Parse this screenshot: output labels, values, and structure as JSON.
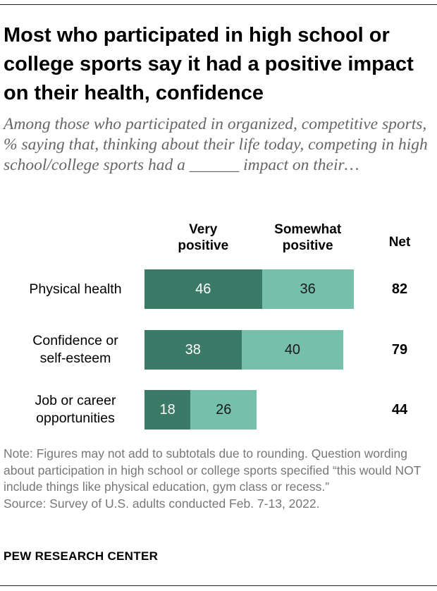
{
  "title": "Most who participated in high school or college sports say it had a positive impact on their health, confidence",
  "subtitle": "Among those who participated in organized, competitive sports, % saying that, thinking about their life today, competing in high school/college sports had a ______ impact on their…",
  "note": "Note: Figures may not add to subtotals due to rounding. Question wording about participation in high school or college sports specified “this would NOT include things like physical education, gym class or recess.”",
  "source": "Source: Survey of U.S. adults conducted Feb. 7-13, 2022.",
  "footer": "PEW RESEARCH CENTER",
  "colors": {
    "very_positive": "#3b7a66",
    "somewhat_positive": "#76bfab"
  },
  "chart_data": {
    "type": "bar",
    "orientation": "horizontal",
    "stacked": true,
    "categories": [
      "Physical health",
      "Confidence or self-esteem",
      "Job or career opportunities"
    ],
    "series": [
      {
        "name": "Very positive",
        "values": [
          46,
          38,
          18
        ]
      },
      {
        "name": "Somewhat positive",
        "values": [
          36,
          40,
          26
        ]
      }
    ],
    "net_label": "Net",
    "net": [
      82,
      79,
      44
    ],
    "xlim": [
      0,
      100
    ],
    "grid": false,
    "legend": "top"
  }
}
